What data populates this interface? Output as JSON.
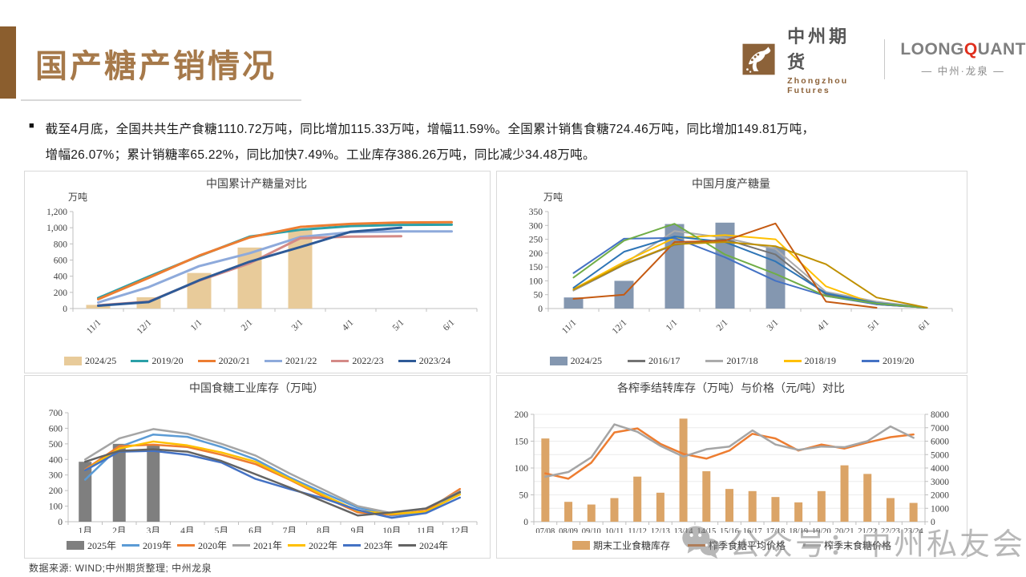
{
  "page": {
    "title": "国产糖产销情况",
    "source_note": "数据来源: WIND;中州期货整理; 中州龙泉",
    "watermark": "公众号：中州私友会",
    "accent_color": "#8B5E2E",
    "title_color": "#A6794A"
  },
  "header": {
    "zhongzhou": {
      "name": "中州期货",
      "sub": "Zhongzhou Futures"
    },
    "loongquant": {
      "word_pre": "LOONG",
      "word_q": "Q",
      "word_post": "UANT",
      "sub": "— 中州·龙泉 —"
    }
  },
  "summary": {
    "lines": [
      "截至4月底，全国共共生产食糖1110.72万吨，同比增加115.33万吨，增幅11.59%。全国累计销售食糖724.46万吨，同比增加149.81万吨，",
      "增幅26.07%；累计销糖率65.22%，同比加快7.49%。工业库存386.26万吨，同比减少34.48万吨。"
    ]
  },
  "chart_data": [
    {
      "type": "bar+line",
      "title": "中国累计产糖量对比",
      "unit_label": "万吨",
      "ylabel": "万吨",
      "categories": [
        "11/1",
        "12/1",
        "1/1",
        "2/1",
        "3/1",
        "4/1",
        "5/1",
        "6/1"
      ],
      "ylim": [
        0,
        1200
      ],
      "yticks": [
        "0",
        "200",
        "400",
        "600",
        "800",
        "1,000",
        "1,200"
      ],
      "legend_position": "bottom",
      "bar_series": {
        "name": "2024/25",
        "color": "#E8CB9A",
        "values": [
          45,
          140,
          440,
          755,
          985,
          null,
          null,
          null
        ]
      },
      "line_series": [
        {
          "name": "2019/20",
          "color": "#2BA0A8",
          "values": [
            130,
            395,
            650,
            890,
            975,
            1020,
            1035,
            1038
          ]
        },
        {
          "name": "2020/21",
          "color": "#ED7D31",
          "values": [
            115,
            380,
            655,
            880,
            1010,
            1048,
            1065,
            1068
          ]
        },
        {
          "name": "2021/22",
          "color": "#8EAADB",
          "values": [
            75,
            265,
            525,
            685,
            885,
            945,
            955,
            955
          ]
        },
        {
          "name": "2022/23",
          "color": "#D48A87",
          "values": [
            40,
            85,
            345,
            560,
            870,
            890,
            895,
            null
          ]
        },
        {
          "name": "2023/24",
          "color": "#2E5A97",
          "values": [
            35,
            80,
            350,
            580,
            760,
            950,
            1000,
            null
          ]
        }
      ]
    },
    {
      "type": "bar+line",
      "title": "中国月度产糖量",
      "unit_label": "万吨",
      "ylabel": "万吨",
      "categories": [
        "11/1",
        "12/1",
        "1/1",
        "2/1",
        "3/1",
        "4/1",
        "5/1",
        "6/1"
      ],
      "ylim": [
        0,
        350
      ],
      "yticks": [
        "0",
        "50",
        "100",
        "150",
        "200",
        "250",
        "300",
        "350"
      ],
      "legend_position": "bottom",
      "bar_series": {
        "name": "2024/25",
        "color": "#8497B0",
        "values": [
          40,
          100,
          305,
          310,
          222,
          null,
          null,
          null
        ]
      },
      "line_series": [
        {
          "name": "2016/17",
          "color": "#737373",
          "values": [
            65,
            158,
            230,
            250,
            195,
            50,
            15,
            3
          ]
        },
        {
          "name": "2017/18",
          "color": "#ABABAB",
          "values": [
            66,
            162,
            280,
            255,
            215,
            60,
            25,
            3
          ]
        },
        {
          "name": "2018/19",
          "color": "#FFC000",
          "values": [
            70,
            168,
            255,
            265,
            250,
            80,
            15,
            3
          ]
        },
        {
          "name": "2019/20",
          "color": "#4472C4",
          "values": [
            128,
            252,
            255,
            185,
            100,
            45,
            15,
            3
          ]
        },
        {
          "name": "unlabeled-steel-blue",
          "color": "#2E75B6",
          "values": [
            75,
            205,
            260,
            240,
            170,
            55,
            20,
            3
          ],
          "legend": false
        },
        {
          "name": "unlabeled-green",
          "color": "#70AD47",
          "values": [
            112,
            245,
            306,
            195,
            125,
            45,
            18,
            3
          ],
          "legend": false
        },
        {
          "name": "unlabeled-orange-red",
          "color": "#C55A11",
          "values": [
            35,
            50,
            240,
            245,
            307,
            25,
            3,
            null
          ],
          "legend": false
        },
        {
          "name": "unlabeled-gold",
          "color": "#BF9000",
          "values": [
            68,
            160,
            232,
            240,
            225,
            160,
            40,
            3
          ],
          "legend": false
        }
      ]
    },
    {
      "type": "bar+line",
      "title": "中国食糖工业库存（万吨）",
      "categories": [
        "1月",
        "2月",
        "3月",
        "4月",
        "5月",
        "6月",
        "7月",
        "8月",
        "9月",
        "10月",
        "11月",
        "12月"
      ],
      "ylim": [
        0,
        700
      ],
      "yticks": [
        "0",
        "100",
        "200",
        "300",
        "400",
        "500",
        "600",
        "700"
      ],
      "legend_position": "bottom",
      "bar_series": {
        "name": "2025年",
        "color": "#7F7F7F",
        "values": [
          385,
          500,
          490,
          null,
          null,
          null,
          null,
          null,
          null,
          null,
          null,
          null
        ]
      },
      "line_series": [
        {
          "name": "2019年",
          "color": "#5B9BD5",
          "values": [
            270,
            480,
            560,
            545,
            480,
            400,
            285,
            185,
            90,
            40,
            60,
            185
          ]
        },
        {
          "name": "2020年",
          "color": "#ED7D31",
          "values": [
            335,
            485,
            495,
            480,
            430,
            370,
            270,
            160,
            60,
            45,
            70,
            210
          ]
        },
        {
          "name": "2021年",
          "color": "#A5A5A5",
          "values": [
            400,
            535,
            595,
            565,
            500,
            425,
            310,
            205,
            100,
            55,
            85,
            195
          ]
        },
        {
          "name": "2022年",
          "color": "#FFC000",
          "values": [
            330,
            470,
            515,
            490,
            445,
            385,
            275,
            170,
            70,
            50,
            65,
            175
          ]
        },
        {
          "name": "2023年",
          "color": "#4472C4",
          "values": [
            330,
            450,
            455,
            430,
            380,
            275,
            210,
            150,
            75,
            25,
            55,
            155
          ]
        },
        {
          "name": "2024年",
          "color": "#636363",
          "values": [
            385,
            455,
            465,
            450,
            390,
            305,
            220,
            130,
            40,
            60,
            85,
            190
          ]
        }
      ]
    },
    {
      "type": "bar+line",
      "title": "各榨季结转库存（万吨）与价格（元/吨）对比",
      "categories": [
        "07/08",
        "08/09",
        "09/10",
        "10/11",
        "11/12",
        "12/13",
        "13/14",
        "14/15",
        "15/16",
        "16/17",
        "17/18",
        "18/19",
        "19/20",
        "20/21",
        "21/22",
        "22/23",
        "23/24"
      ],
      "ylim": [
        0,
        200
      ],
      "yticks": [
        "0",
        "50",
        "100",
        "150",
        "200"
      ],
      "right_ylim": [
        0,
        8000
      ],
      "right_yticks": [
        "0",
        "1000",
        "2000",
        "3000",
        "4000",
        "5000",
        "6000",
        "7000",
        "8000"
      ],
      "lines_on_right": true,
      "grid": true,
      "legend_position": "bottom",
      "bar_series": {
        "name": "期末工业食糖库存",
        "color": "#DBA467",
        "values": [
          155,
          37,
          32,
          44,
          84,
          54,
          192,
          94,
          61,
          57,
          46,
          36,
          57,
          105,
          89,
          44,
          35
        ]
      },
      "line_series": [
        {
          "name": "榨季食糖平均价格",
          "color": "#ED7D31",
          "values": [
            3600,
            3200,
            4400,
            6650,
            6950,
            5800,
            5050,
            4700,
            5300,
            6550,
            6200,
            5300,
            5750,
            5450,
            5900,
            6300,
            6500
          ]
        },
        {
          "name": "榨季末食糖价格",
          "color": "#A5A5A5",
          "values": [
            3350,
            3700,
            4800,
            7250,
            6700,
            5650,
            4850,
            5400,
            5600,
            6800,
            5750,
            5350,
            5600,
            5550,
            6000,
            7100,
            6250
          ]
        }
      ]
    }
  ]
}
